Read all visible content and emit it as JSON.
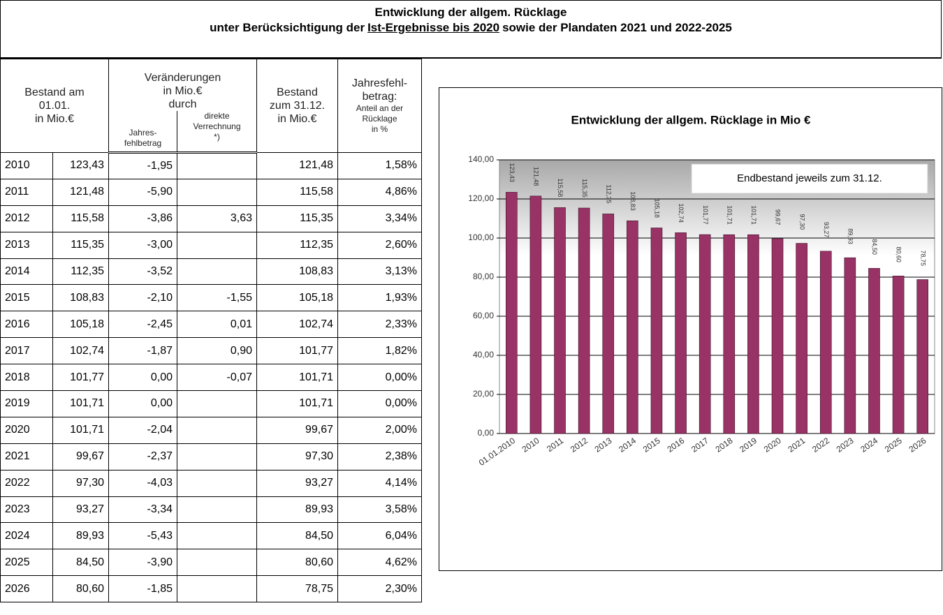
{
  "header": {
    "title": "Entwicklung der allgem. Rücklage",
    "subtitle": [
      "unter Berücksichtigung der",
      "Ist-Ergebnisse  bis 2020",
      "sowie der Plandaten 2021 und  2022-2025"
    ]
  },
  "table": {
    "headers": {
      "start": [
        "Bestand am",
        "01.01.",
        "in Mio.€"
      ],
      "changes": [
        "Veränderungen",
        "in  Mio.€",
        "durch"
      ],
      "deficit": [
        "Jahres-",
        "fehlbetrag"
      ],
      "direct": [
        "direkte",
        "Verrechnung",
        "*)"
      ],
      "end": [
        "Bestand",
        "zum 31.12.",
        "in Mio.€"
      ],
      "share": [
        "Jahresfehl-",
        "betrag:"
      ],
      "share_sub": [
        "Anteil an der",
        "Rücklage",
        "in %"
      ]
    },
    "rows": [
      [
        "2010",
        "123,43",
        "-1,95",
        null,
        "121,48",
        "1,58%"
      ],
      [
        "2011",
        "121,48",
        "-5,90",
        null,
        "115,58",
        "4,86%"
      ],
      [
        "2012",
        "115,58",
        "-3,86",
        "3,63",
        "115,35",
        "3,34%"
      ],
      [
        "2013",
        "115,35",
        "-3,00",
        null,
        "112,35",
        "2,60%"
      ],
      [
        "2014",
        "112,35",
        "-3,52",
        null,
        "108,83",
        "3,13%"
      ],
      [
        "2015",
        "108,83",
        "-2,10",
        "-1,55",
        "105,18",
        "1,93%"
      ],
      [
        "2016",
        "105,18",
        "-2,45",
        "0,01",
        "102,74",
        "2,33%"
      ],
      [
        "2017",
        "102,74",
        "-1,87",
        "0,90",
        "101,77",
        "1,82%"
      ],
      [
        "2018",
        "101,77",
        "0,00",
        "-0,07",
        "101,71",
        "0,00%"
      ],
      [
        "2019",
        "101,71",
        "0,00",
        null,
        "101,71",
        "0,00%"
      ],
      [
        "2020",
        "101,71",
        "-2,04",
        null,
        "99,67",
        "2,00%"
      ],
      [
        "2021",
        "99,67",
        "-2,37",
        null,
        "97,30",
        "2,38%"
      ],
      [
        "2022",
        "97,30",
        "-4,03",
        null,
        "93,27",
        "4,14%"
      ],
      [
        "2023",
        "93,27",
        "-3,34",
        null,
        "89,93",
        "3,58%"
      ],
      [
        "2024",
        "89,93",
        "-5,43",
        null,
        "84,50",
        "6,04%"
      ],
      [
        "2025",
        "84,50",
        "-3,90",
        null,
        "80,60",
        "4,62%"
      ],
      [
        "2026",
        "80,60",
        "-1,85",
        null,
        "78,75",
        "2,30%"
      ]
    ]
  },
  "chart_data": {
    "type": "bar",
    "title": "Entwicklung der allgem. Rücklage in Mio €",
    "annotation": "Endbestand jeweils zum 31.12.",
    "categories": [
      "01.01.2010",
      "2010",
      "2011",
      "2012",
      "2013",
      "2014",
      "2015",
      "2016",
      "2017",
      "2018",
      "2019",
      "2020",
      "2021",
      "2022",
      "2023",
      "2024",
      "2025",
      "2026"
    ],
    "values": [
      123.43,
      121.48,
      115.58,
      115.35,
      112.35,
      108.83,
      105.18,
      102.74,
      101.77,
      101.71,
      101.71,
      99.67,
      97.3,
      93.27,
      89.93,
      84.5,
      80.6,
      78.75
    ],
    "value_labels": [
      "123,43",
      "121,48",
      "115,58",
      "115,35",
      "112,35",
      "108,83",
      "105,18",
      "102,74",
      "101,77",
      "101,71",
      "101,71",
      "99,67",
      "97,30",
      "93,27",
      "89,93",
      "84,50",
      "80,60",
      "78,75"
    ],
    "color": "#993366",
    "ylim": [
      0,
      140
    ],
    "yticks": [
      {
        "value": 0,
        "label": "0,00"
      },
      {
        "value": 20,
        "label": "20,00"
      },
      {
        "value": 40,
        "label": "40,00"
      },
      {
        "value": 60,
        "label": "60,00"
      },
      {
        "value": 80,
        "label": "80,00"
      },
      {
        "value": 100,
        "label": "100,00"
      },
      {
        "value": 120,
        "label": "120,00"
      },
      {
        "value": 140,
        "label": "140,00"
      }
    ],
    "grid": true
  }
}
